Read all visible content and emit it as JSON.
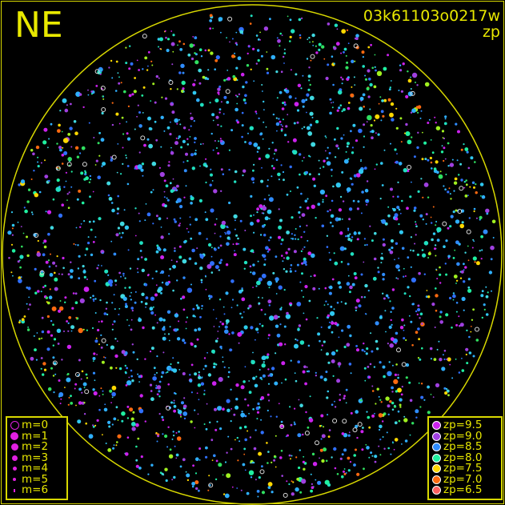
{
  "chart_data": {
    "type": "scatter",
    "title": "",
    "direction_label": "NE",
    "frame_id": "03k61103o0217w",
    "mode_label": "zp",
    "grid": false,
    "size_legend": {
      "position": "bottom-left",
      "entries": [
        {
          "label": "m=0",
          "style": "ring"
        },
        {
          "label": "m=1"
        },
        {
          "label": "m=2"
        },
        {
          "label": "m=3"
        },
        {
          "label": "m=4"
        },
        {
          "label": "m=5"
        },
        {
          "label": "m=6"
        }
      ],
      "color": "#e020e0"
    },
    "color_legend": {
      "position": "bottom-right",
      "entries": [
        {
          "label": "zp=9.5",
          "color": "#cc22ee"
        },
        {
          "label": "zp=9.0",
          "color": "#a040e0"
        },
        {
          "label": "zp=8.5",
          "color": "#2f8cff"
        },
        {
          "label": "zp=8.0",
          "color": "#20f0a0"
        },
        {
          "label": "zp=7.5",
          "color": "#ffd800"
        },
        {
          "label": "zp=7.0",
          "color": "#ff6a10"
        },
        {
          "label": "zp=6.5",
          "color": "#ff6060"
        }
      ]
    },
    "horizon_color": "#d8d800"
  }
}
